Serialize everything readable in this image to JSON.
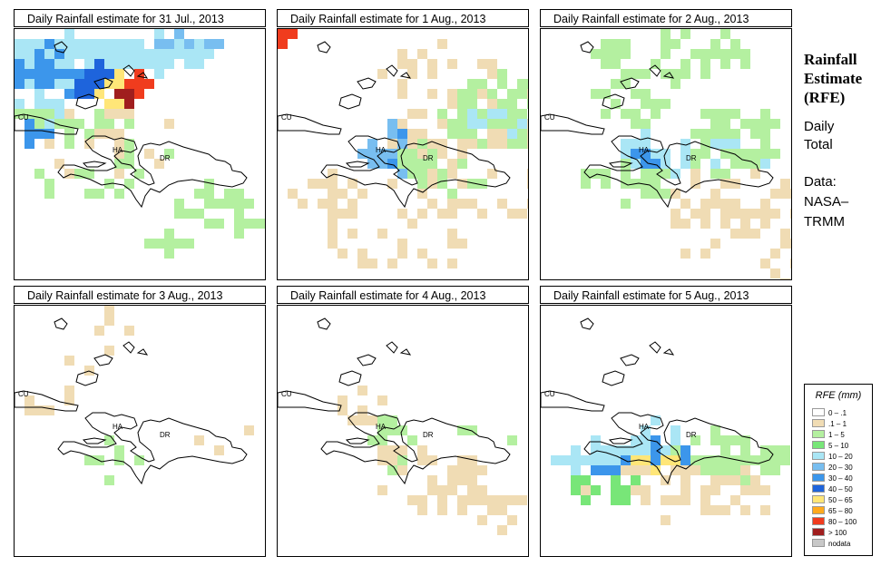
{
  "side": {
    "title_lines": [
      "Rainfall",
      "Estimate",
      "(RFE)"
    ],
    "daily_lines": [
      "Daily",
      "Total"
    ],
    "data_lines": [
      "Data:",
      "NASA–",
      "TRMM"
    ]
  },
  "panels": [
    {
      "title": "Daily Rainfall estimate for  31 Jul., 2013"
    },
    {
      "title": "Daily Rainfall estimate for  1 Aug., 2013"
    },
    {
      "title": "Daily Rainfall estimate for  2 Aug., 2013"
    },
    {
      "title": "Daily Rainfall estimate for  3 Aug., 2013"
    },
    {
      "title": "Daily Rainfall estimate for  4 Aug., 2013"
    },
    {
      "title": "Daily Rainfall estimate for  5 Aug., 2013"
    }
  ],
  "map_labels": {
    "cuba": "CU",
    "haiti": "HA",
    "dominican_republic": "DR"
  },
  "legend": {
    "title": "RFE (mm)",
    "classes": [
      {
        "label": "0 – .1",
        "color": "#ffffff"
      },
      {
        "label": ".1 – 1",
        "color": "#f0dcb4"
      },
      {
        "label": "1 – 5",
        "color": "#b4f0a0"
      },
      {
        "label": "5 – 10",
        "color": "#78e678"
      },
      {
        "label": "10 – 20",
        "color": "#aae6f5"
      },
      {
        "label": "20 – 30",
        "color": "#78bef0"
      },
      {
        "label": "30 – 40",
        "color": "#3c96eb"
      },
      {
        "label": "40 – 50",
        "color": "#1e64dc"
      },
      {
        "label": "50 – 65",
        "color": "#ffe678"
      },
      {
        "label": "65 – 80",
        "color": "#ffaa1e"
      },
      {
        "label": "80 – 100",
        "color": "#f03c1e"
      },
      {
        "label": "> 100",
        "color": "#a01e1e"
      },
      {
        "label": "nodata",
        "color": "#c8c8c8"
      }
    ]
  }
}
